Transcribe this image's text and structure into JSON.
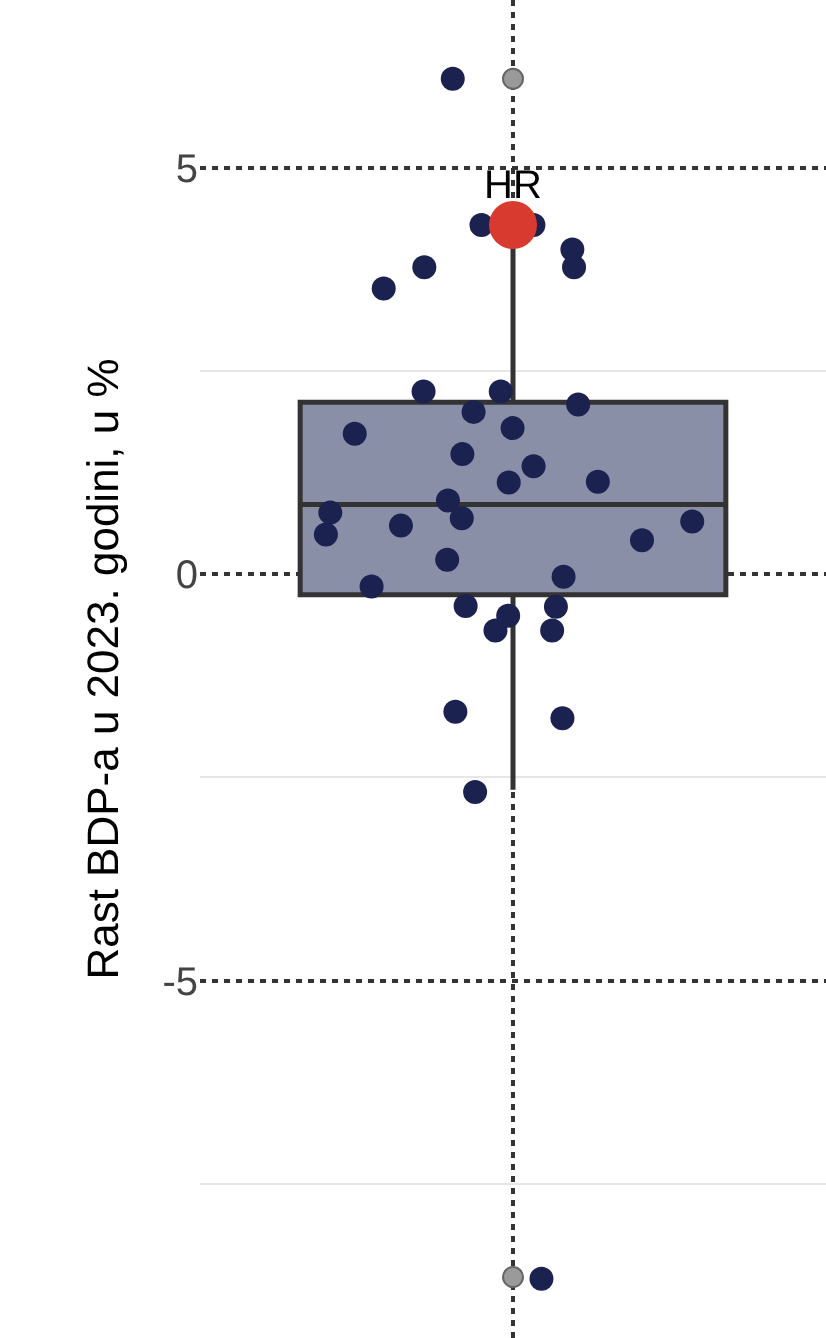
{
  "chart_data": {
    "type": "box",
    "ylabel": "Rast BDP-a u 2023. godini, u %",
    "categories": [
      null
    ],
    "series": [
      {
        "color": "#8a8fa8",
        "boxes": [
          {
            "low": -2.65,
            "q1": -0.25,
            "median": 0.86,
            "q3": 2.12,
            "high": 4.3,
            "outliers": [
              6.1,
              -8.65
            ]
          }
        ]
      },
      {
        "type": "scatter",
        "color": "#1b2250",
        "x": [
          null,
          null,
          null,
          null,
          null,
          null,
          null,
          null,
          null,
          null,
          null,
          null,
          null,
          null,
          null,
          null,
          null,
          null,
          null,
          null,
          null,
          null,
          null,
          null,
          null,
          null,
          null,
          null,
          null,
          null,
          null,
          null,
          null,
          null,
          null,
          null
        ],
        "values": [
          6.1,
          4.3,
          4.3,
          4.0,
          3.78,
          3.78,
          3.52,
          2.25,
          2.25,
          2.09,
          2.0,
          1.8,
          1.73,
          1.48,
          1.33,
          1.13,
          1.14,
          0.91,
          0.65,
          0.76,
          0.69,
          0.6,
          0.42,
          0.49,
          0.18,
          -0.03,
          -0.15,
          -0.39,
          -0.4,
          -0.51,
          -0.69,
          -0.69,
          -1.77,
          -1.69,
          -2.68,
          -8.67
        ]
      },
      {
        "type": "scatter",
        "color": "#d93a2f",
        "x": [
          null
        ],
        "values": [
          4.3
        ]
      }
    ],
    "annotations": [
      {
        "text": "HR",
        "y": 4.3
      }
    ],
    "ylim": [
      -9.4,
      7.07
    ],
    "yticks": [
      {
        "value": -7.5,
        "label": null
      },
      -5,
      {
        "value": -2.5,
        "label": null
      },
      0,
      {
        "value": 2.5,
        "label": null
      },
      5
    ],
    "grid": true
  }
}
